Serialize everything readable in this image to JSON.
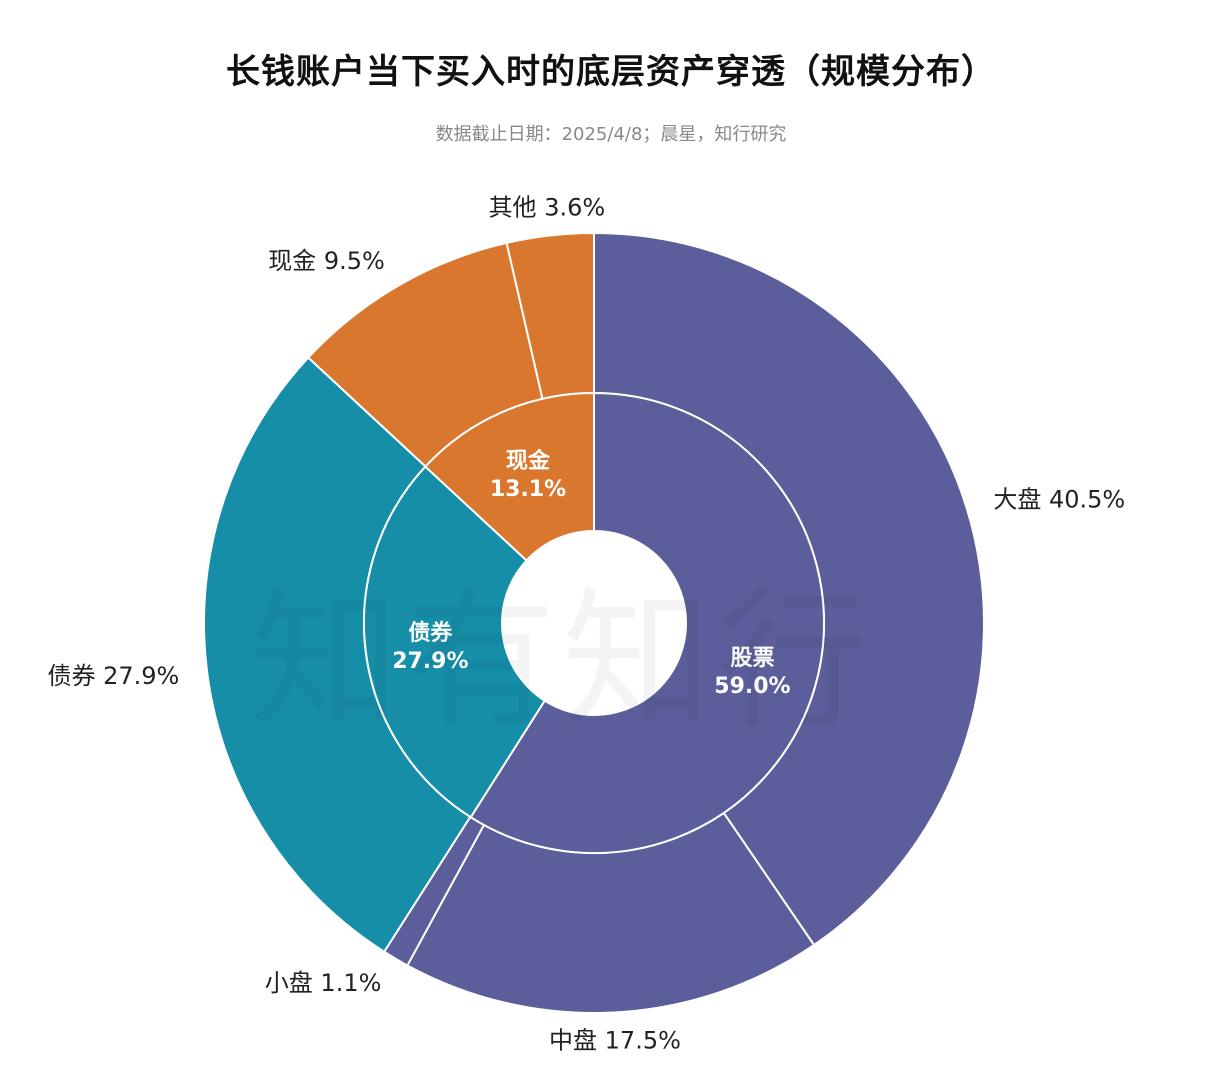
{
  "chart_data": {
    "type": "pie",
    "title": "长钱账户当下买入时的底层资产穿透（规模分布）",
    "subtitle": "数据截止日期：2025/4/8；晨星，知行研究",
    "inner": [
      {
        "name": "股票",
        "value": 59.0,
        "label": "59.0%",
        "color": "#5b5e9a"
      },
      {
        "name": "债券",
        "value": 27.9,
        "label": "27.9%",
        "color": "#168ea8"
      },
      {
        "name": "现金",
        "value": 13.1,
        "label": "13.1%",
        "color": "#d9772e"
      }
    ],
    "outer": [
      {
        "name": "大盘",
        "value": 40.5,
        "label": "40.5%",
        "color": "#5b5e9a"
      },
      {
        "name": "中盘",
        "value": 17.5,
        "label": "17.5%",
        "color": "#5b5e9a"
      },
      {
        "name": "小盘",
        "value": 1.1,
        "label": "1.1%",
        "color": "#5b5e9a"
      },
      {
        "name": "债券",
        "value": 27.9,
        "label": "27.9%",
        "color": "#168ea8"
      },
      {
        "name": "现金",
        "value": 9.5,
        "label": "9.5%",
        "color": "#d9772e"
      },
      {
        "name": "其他",
        "value": 3.6,
        "label": "3.6%",
        "color": "#d9772e"
      }
    ]
  },
  "watermark": "知有知行"
}
